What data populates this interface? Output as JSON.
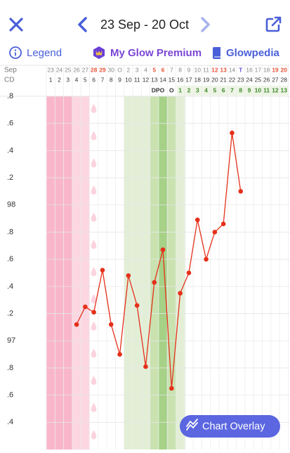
{
  "header": {
    "date_range": "23 Sep - 20 Oct"
  },
  "toolbar": {
    "legend": "Legend",
    "premium": "My Glow Premium",
    "glowpedia": "Glowpedia"
  },
  "chart_data": {
    "type": "line",
    "month_label": "Sep",
    "cd_label": "CD",
    "dpo_label": "DPO",
    "categories": [
      "23",
      "24",
      "25",
      "26",
      "27",
      "28",
      "29",
      "30",
      "O",
      "2",
      "3",
      "4",
      "5",
      "6",
      "7",
      "8",
      "9",
      "10",
      "11",
      "12",
      "13",
      "14",
      "T",
      "16",
      "17",
      "18",
      "19",
      "20"
    ],
    "category_colors": [
      "#888",
      "#888",
      "#888",
      "#888",
      "#888",
      "#e8553d",
      "#e8553d",
      "#888",
      "#888",
      "#888",
      "#888",
      "#888",
      "#e8553d",
      "#e8553d",
      "#888",
      "#888",
      "#888",
      "#888",
      "#888",
      "#e8553d",
      "#e8553d",
      "#888",
      "#6a4fd6",
      "#888",
      "#888",
      "#888",
      "#e8553d",
      "#e8553d"
    ],
    "cycle_days": [
      1,
      2,
      3,
      4,
      5,
      6,
      7,
      8,
      9,
      10,
      11,
      12,
      13,
      14,
      15,
      16,
      17,
      18,
      19,
      20,
      21,
      22,
      23,
      24,
      25,
      26,
      27,
      28
    ],
    "dpo": [
      null,
      null,
      null,
      null,
      null,
      null,
      null,
      null,
      null,
      null,
      null,
      null,
      null,
      null,
      "O",
      1,
      2,
      3,
      4,
      5,
      6,
      7,
      8,
      9,
      10,
      11,
      12,
      13
    ],
    "color": "#e5301b",
    "values": [
      null,
      null,
      null,
      97.12,
      97.25,
      97.21,
      97.52,
      97.12,
      96.9,
      97.48,
      97.26,
      96.81,
      97.43,
      97.67,
      96.65,
      97.35,
      97.5,
      97.89,
      97.6,
      97.8,
      97.86,
      98.53,
      98.1,
      null,
      null,
      null,
      null,
      null
    ],
    "ylim": [
      96.2,
      98.8
    ],
    "yticks": [
      {
        "value": 98.8,
        "label": ".8"
      },
      {
        "value": 98.6,
        "label": ".6"
      },
      {
        "value": 98.4,
        "label": ".4"
      },
      {
        "value": 98.2,
        "label": ".2"
      },
      98,
      {
        "value": 97.8,
        "label": ".8"
      },
      {
        "value": 97.6,
        "label": ".6"
      },
      {
        "value": 97.4,
        "label": ".4"
      },
      {
        "value": 97.2,
        "label": ".2"
      },
      97,
      {
        "value": 96.8,
        "label": ".8"
      },
      {
        "value": 96.6,
        "label": ".6"
      },
      {
        "value": 96.4,
        "label": ".4"
      }
    ],
    "grid": true
  },
  "button": {
    "label": "Chart Overlay"
  }
}
